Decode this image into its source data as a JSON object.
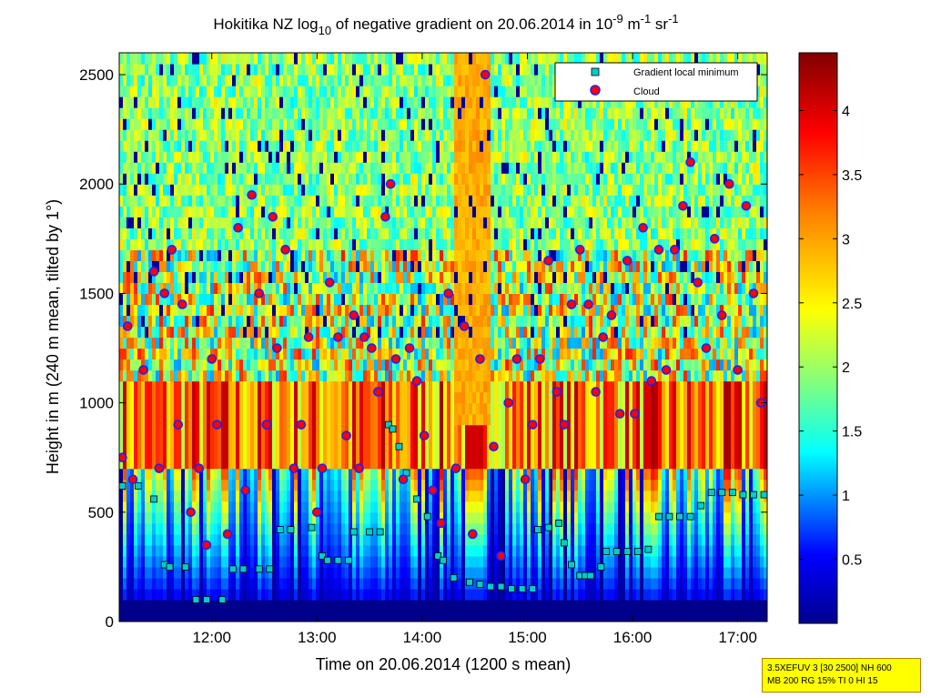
{
  "chart_data": {
    "type": "heatmap",
    "title": {
      "prefix": "Hokitika NZ log",
      "sub": "10",
      "middle": " of negative gradient on 20.06.2014 in 10",
      "exp1": "-9",
      "unit1": " m",
      "exp2": "-1",
      "unit2": " sr",
      "exp3": "-1"
    },
    "xlabel": "Time on 20.06.2014 (1200 s mean)",
    "ylabel": "Height in m (240 m mean, tilted by 1°)",
    "x_ticks": [
      "12:00",
      "13:00",
      "14:00",
      "15:00",
      "16:00",
      "17:00"
    ],
    "x_tick_hours": [
      12,
      13,
      14,
      15,
      16,
      17
    ],
    "xlim_hours": [
      11.12,
      17.28
    ],
    "y_ticks": [
      "0",
      "500",
      "1000",
      "1500",
      "2000",
      "2500"
    ],
    "y_tick_values": [
      0,
      500,
      1000,
      1500,
      2000,
      2500
    ],
    "ylim": [
      0,
      2600
    ],
    "colorbar": {
      "ticks": [
        "0.5",
        "1",
        "1.5",
        "2",
        "2.5",
        "3",
        "3.5",
        "4"
      ],
      "tick_values": [
        0.5,
        1,
        1.5,
        2,
        2.5,
        3,
        3.5,
        4
      ],
      "range": [
        0,
        4.45
      ],
      "colormap": "jet"
    },
    "legend": {
      "placement": "top-right",
      "entries": [
        {
          "label": "Gradient local minimum",
          "marker": "square",
          "color": "#00cccc"
        },
        {
          "label": "Cloud",
          "marker": "circle",
          "color": "#ff0000"
        }
      ]
    },
    "series": [
      {
        "name": "Gradient local minimum",
        "x": [
          11.15,
          11.3,
          11.45,
          11.55,
          11.6,
          11.75,
          11.85,
          11.95,
          12.1,
          12.2,
          12.3,
          12.45,
          12.55,
          12.65,
          12.75,
          12.95,
          13.05,
          13.1,
          13.2,
          13.3,
          13.35,
          13.5,
          13.6,
          13.68,
          13.72,
          13.78,
          13.85,
          13.95,
          14.05,
          14.15,
          14.2,
          14.3,
          14.45,
          14.55,
          14.65,
          14.75,
          14.85,
          14.95,
          15.05,
          15.1,
          15.2,
          15.3,
          15.35,
          15.42,
          15.5,
          15.55,
          15.6,
          15.7,
          15.75,
          15.85,
          15.95,
          16.05,
          16.15,
          16.25,
          16.35,
          16.45,
          16.55,
          16.65,
          16.75,
          16.85,
          16.95,
          17.05,
          17.15,
          17.25
        ],
        "y": [
          620,
          620,
          560,
          260,
          250,
          250,
          100,
          100,
          100,
          240,
          240,
          240,
          240,
          420,
          420,
          430,
          300,
          280,
          280,
          280,
          410,
          410,
          410,
          900,
          880,
          800,
          680,
          560,
          480,
          300,
          280,
          200,
          180,
          170,
          160,
          160,
          150,
          150,
          150,
          420,
          430,
          450,
          360,
          260,
          210,
          210,
          210,
          250,
          320,
          320,
          320,
          320,
          330,
          480,
          480,
          480,
          480,
          530,
          590,
          590,
          590,
          580,
          580,
          580
        ]
      },
      {
        "name": "Cloud",
        "x": [
          11.15,
          11.2,
          11.25,
          11.35,
          11.45,
          11.5,
          11.55,
          11.62,
          11.68,
          11.72,
          11.8,
          11.88,
          11.95,
          12.0,
          12.05,
          12.15,
          12.25,
          12.32,
          12.38,
          12.45,
          12.52,
          12.58,
          12.62,
          12.7,
          12.78,
          12.85,
          12.92,
          13.0,
          13.05,
          13.12,
          13.2,
          13.28,
          13.35,
          13.4,
          13.45,
          13.52,
          13.58,
          13.65,
          13.7,
          13.75,
          13.82,
          13.88,
          13.95,
          14.02,
          14.1,
          14.18,
          14.25,
          14.32,
          14.4,
          14.48,
          14.55,
          14.6,
          14.68,
          14.75,
          14.82,
          14.9,
          14.98,
          15.05,
          15.12,
          15.2,
          15.28,
          15.35,
          15.42,
          15.5,
          15.58,
          15.65,
          15.72,
          15.8,
          15.88,
          15.95,
          16.02,
          16.1,
          16.18,
          16.25,
          16.32,
          16.4,
          16.48,
          16.55,
          16.62,
          16.7,
          16.78,
          16.85,
          16.92,
          17.0,
          17.08,
          17.15,
          17.22
        ],
        "y": [
          750,
          1350,
          650,
          1150,
          1600,
          700,
          1500,
          1700,
          900,
          1450,
          500,
          700,
          350,
          1200,
          900,
          400,
          1800,
          600,
          1950,
          1500,
          900,
          1850,
          1250,
          1700,
          700,
          900,
          1300,
          500,
          700,
          1550,
          1300,
          850,
          1400,
          700,
          1300,
          1250,
          1050,
          1850,
          2000,
          1200,
          650,
          1250,
          1100,
          850,
          600,
          450,
          1500,
          700,
          1350,
          400,
          1200,
          2500,
          800,
          300,
          1000,
          1200,
          650,
          900,
          1200,
          1650,
          1050,
          900,
          1450,
          1700,
          1450,
          1050,
          1300,
          1400,
          950,
          1650,
          950,
          1800,
          1100,
          1700,
          1150,
          1700,
          1900,
          2100,
          1550,
          1250,
          1750,
          1400,
          2000,
          1150,
          1900,
          1500,
          1000
        ]
      }
    ]
  },
  "info_box": {
    "line1": "3.5XEFUV 3 [30 2500] NH 600",
    "line2": "MB 200 RG 15% TI 0 HI 15"
  }
}
